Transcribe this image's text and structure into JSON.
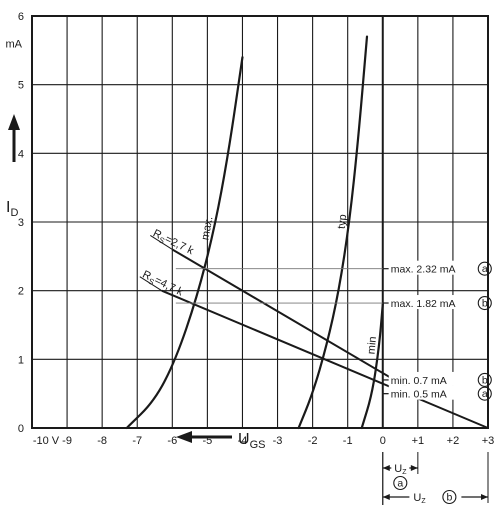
{
  "chart_data": {
    "type": "line",
    "xlim": [
      -10,
      3
    ],
    "ylim": [
      0,
      6
    ],
    "x_ticks": [
      -10,
      -9,
      -8,
      -7,
      -6,
      -5,
      -4,
      -3,
      -2,
      -1,
      0,
      1,
      2,
      3
    ],
    "x_tick_labels": [
      "-10 V",
      "-9",
      "-8",
      "-7",
      "-6",
      "-5",
      "-4",
      "-3",
      "-2",
      "-1",
      "0",
      "+1",
      "+2",
      "+3"
    ],
    "y_ticks": [
      0,
      1,
      2,
      3,
      4,
      5,
      6
    ],
    "y_tick_labels": [
      "0",
      "1",
      "2",
      "3",
      "4",
      "5",
      "6"
    ],
    "y_unit": "mA",
    "xlabel": "U",
    "xlabel_sub": "GS",
    "ylabel": "I",
    "ylabel_sub": "D",
    "grid": true,
    "series": [
      {
        "name": "max.",
        "x": [
          -7.3,
          -6.5,
          -5.9,
          -5.3,
          -4.8,
          -4.4,
          -4.0
        ],
        "y": [
          0,
          0.4,
          1.0,
          1.9,
          2.9,
          4.0,
          5.4
        ]
      },
      {
        "name": "typ",
        "x": [
          -2.4,
          -2.0,
          -1.6,
          -1.25,
          -0.95,
          -0.7,
          -0.45
        ],
        "y": [
          0,
          0.5,
          1.2,
          2.0,
          3.0,
          4.2,
          5.7
        ]
      },
      {
        "name": "min",
        "x": [
          -0.6,
          -0.3,
          -0.1,
          0.0
        ],
        "y": [
          0,
          0.5,
          1.2,
          1.8
        ]
      }
    ],
    "load_lines": [
      {
        "name": "R",
        "sub": "S",
        "value": "=2,7 k",
        "x": [
          -6,
          1
        ],
        "y": [
          2.6,
          0.5
        ]
      },
      {
        "name": "R",
        "sub": "S",
        "value": "=4,7 k",
        "x": [
          -6.3,
          3
        ],
        "y": [
          2.0,
          0.0
        ]
      }
    ],
    "annotations": [
      {
        "text": "max. 2.32 mA",
        "marker": "a",
        "y": 2.32
      },
      {
        "text": "max. 1.82 mA",
        "marker": "b",
        "y": 1.82
      },
      {
        "text": "min. 0.7 mA",
        "marker": "b",
        "y": 0.7
      },
      {
        "text": "min. 0.5 mA",
        "marker": "a",
        "y": 0.5
      }
    ],
    "uz_brackets": [
      {
        "label": "U",
        "sub": "Z",
        "marker": "a",
        "to_x": 1
      },
      {
        "label": "U",
        "sub": "Z",
        "marker": "b",
        "to_x": 3
      }
    ]
  }
}
